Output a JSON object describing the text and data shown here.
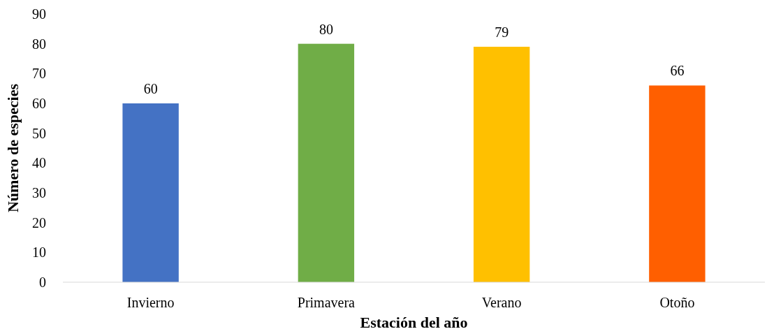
{
  "chart_data": {
    "type": "bar",
    "xlabel": "Estación del año",
    "ylabel": "Número de especies",
    "categories": [
      "Invierno",
      "Primavera",
      "Verano",
      "Otoño"
    ],
    "values": [
      60,
      80,
      79,
      66
    ],
    "colors": [
      "#4472c4",
      "#70ad47",
      "#ffc000",
      "#ff5f00"
    ],
    "ylim": [
      0,
      90
    ],
    "yticks": [
      0,
      10,
      20,
      30,
      40,
      50,
      60,
      70,
      80,
      90
    ],
    "grid": false,
    "data_labels": true
  }
}
